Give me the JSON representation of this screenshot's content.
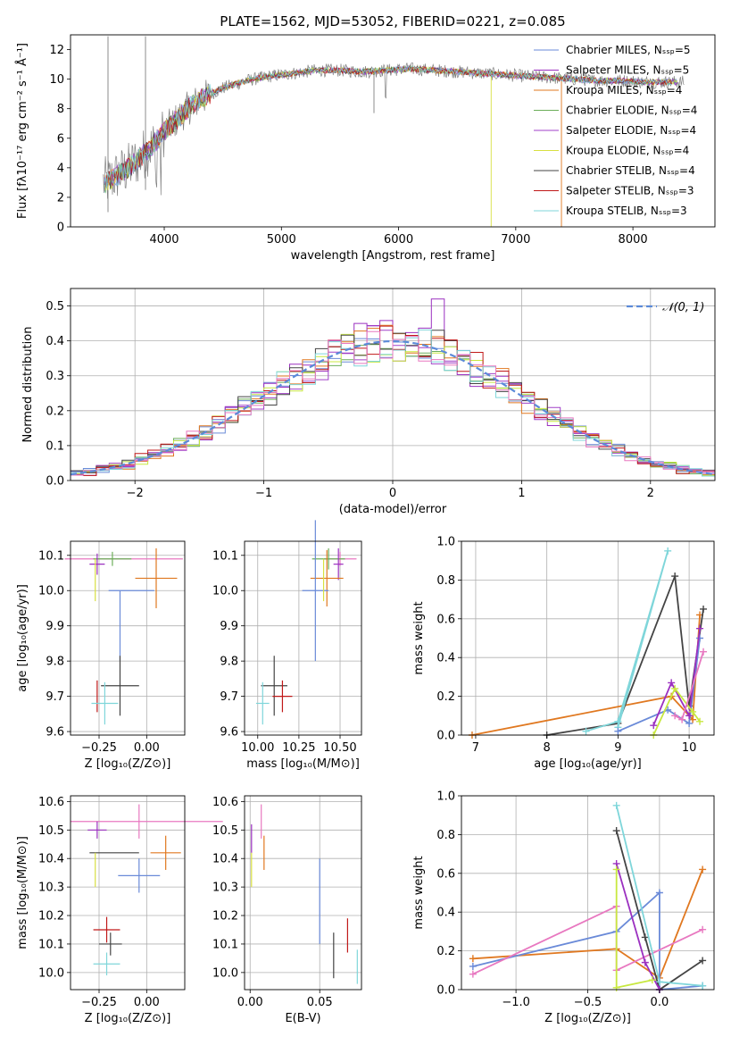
{
  "colors": {
    "chabrier_miles": "#6a8ad8",
    "salpeter_miles": "#9b30c0",
    "kroupa_miles": "#e07820",
    "chabrier_elodie": "#6cae5a",
    "salpeter_elodie": "#a040c8",
    "kroupa_elodie": "#d8e040",
    "chabrier_stelib": "#444444",
    "salpeter_stelib": "#c01818",
    "kroupa_stelib": "#7fd6da",
    "data_spectrum": "#808080",
    "grid": "#b0b0b0",
    "normal_curve": "#5b8ad8",
    "pink": "#e878c0",
    "lime": "#c8e840"
  },
  "chart_data": [
    {
      "id": "spectrum",
      "type": "line",
      "title": "PLATE=1562, MJD=53052, FIBERID=0221, z=0.085",
      "xlabel": "wavelength [Angstrom, rest frame]",
      "ylabel": "Flux [fλ10⁻¹⁷ erg cm⁻² s⁻¹ Å⁻¹]",
      "xlim": [
        3200,
        8700
      ],
      "ylim": [
        0,
        13
      ],
      "xticks": [
        "4000",
        "5000",
        "6000",
        "7000",
        "8000"
      ],
      "yticks": [
        "0",
        "2",
        "4",
        "6",
        "8",
        "10",
        "12"
      ],
      "grid": false,
      "legend": "top-right",
      "legend_entries": [
        "Chabrier MILES, Nₛₛₚ=5",
        "Salpeter MILES, Nₛₛₚ=5",
        "Kroupa MILES, Nₛₛₚ=4",
        "Chabrier ELODIE, Nₛₛₚ=4",
        "Salpeter ELODIE, Nₛₛₚ=4",
        "Kroupa ELODIE, Nₛₛₚ=4",
        "Chabrier STELIB, Nₛₛₚ=4",
        "Salpeter STELIB, Nₛₛₚ=3",
        "Kroupa STELIB, Nₛₛₚ=3"
      ],
      "continuum_x": [
        3500,
        3700,
        3900,
        4000,
        4100,
        4200,
        4300,
        4500,
        4700,
        4900,
        5100,
        5300,
        5500,
        5700,
        5900,
        6100,
        6300,
        6500,
        6700,
        6900,
        7100,
        7300,
        7500,
        7700,
        7900,
        8100,
        8300
      ],
      "continuum_y": [
        3.0,
        4.0,
        5.5,
        6.5,
        7.2,
        8.0,
        8.6,
        9.4,
        9.9,
        10.2,
        10.4,
        10.6,
        10.6,
        10.5,
        10.6,
        10.7,
        10.6,
        10.5,
        10.4,
        10.3,
        10.2,
        10.1,
        10.0,
        9.9,
        9.9,
        9.8,
        9.8
      ]
    },
    {
      "id": "residuals",
      "type": "histogram",
      "xlabel": "(data-model)/error",
      "ylabel": "Normed distribution",
      "xlim": [
        -2.5,
        2.5
      ],
      "ylim": [
        0,
        0.55
      ],
      "xticks": [
        "−2",
        "−1",
        "0",
        "1",
        "2"
      ],
      "yticks": [
        "0.0",
        "0.1",
        "0.2",
        "0.3",
        "0.4",
        "0.5"
      ],
      "grid": true,
      "legend": "top-right",
      "legend_label": "𝒩(0, 1)",
      "bin_width": 0.1
    },
    {
      "id": "age_vs_Z",
      "type": "errorbar",
      "xlabel": "Z [log₁₀(Z/Z⊙)]",
      "ylabel": "age  [log₁₀(age/yr)]",
      "xlim": [
        -0.4,
        0.2
      ],
      "ylim": [
        9.59,
        10.14
      ],
      "xticks": [
        "−0.25",
        "0.00"
      ],
      "yticks": [
        "9.6",
        "9.7",
        "9.8",
        "9.9",
        "10.0",
        "10.1"
      ],
      "grid": true
    },
    {
      "id": "age_vs_mass",
      "type": "errorbar",
      "xlabel": "mass [log₁₀(M/M⊙)]",
      "ylabel": "",
      "xlim": [
        9.92,
        10.63
      ],
      "ylim": [
        9.59,
        10.14
      ],
      "xticks": [
        "10.00",
        "10.25",
        "10.50"
      ],
      "yticks": [
        "9.6",
        "9.7",
        "9.8",
        "9.9",
        "10.0",
        "10.1"
      ],
      "grid": true
    },
    {
      "id": "massweight_vs_age",
      "type": "line",
      "xlabel": "age  [log₁₀(age/yr)]",
      "ylabel": "mass weight",
      "xlim": [
        6.8,
        10.35
      ],
      "ylim": [
        0,
        1
      ],
      "xticks": [
        "7",
        "8",
        "9",
        "10"
      ],
      "yticks": [
        "0.0",
        "0.2",
        "0.4",
        "0.6",
        "0.8",
        "1.0"
      ],
      "grid": true
    },
    {
      "id": "mass_vs_Z",
      "type": "errorbar",
      "xlabel": "Z [log₁₀(Z/Z⊙)]",
      "ylabel": "mass [log₁₀(M/M⊙)]",
      "xlim": [
        -0.4,
        0.2
      ],
      "ylim": [
        9.94,
        10.62
      ],
      "xticks": [
        "−0.25",
        "0.00"
      ],
      "yticks": [
        "10.0",
        "10.1",
        "10.2",
        "10.3",
        "10.4",
        "10.5",
        "10.6"
      ],
      "grid": true
    },
    {
      "id": "mass_vs_ebv",
      "type": "errorbar",
      "xlabel": "E(B-V)",
      "ylabel": "",
      "xlim": [
        -0.004,
        0.08
      ],
      "ylim": [
        9.94,
        10.62
      ],
      "xticks": [
        "0.00",
        "0.05"
      ],
      "yticks": [
        "10.0",
        "10.1",
        "10.2",
        "10.3",
        "10.4",
        "10.5",
        "10.6"
      ],
      "grid": true
    },
    {
      "id": "massweight_vs_Z",
      "type": "line",
      "xlabel": "Z [log₁₀(Z/Z⊙)]",
      "ylabel": "mass weight",
      "xlim": [
        -1.38,
        0.38
      ],
      "ylim": [
        0,
        1
      ],
      "xticks": [
        "−1.0",
        "−0.5",
        "0.0"
      ],
      "yticks": [
        "0.0",
        "0.2",
        "0.4",
        "0.6",
        "0.8",
        "1.0"
      ],
      "grid": true
    }
  ]
}
